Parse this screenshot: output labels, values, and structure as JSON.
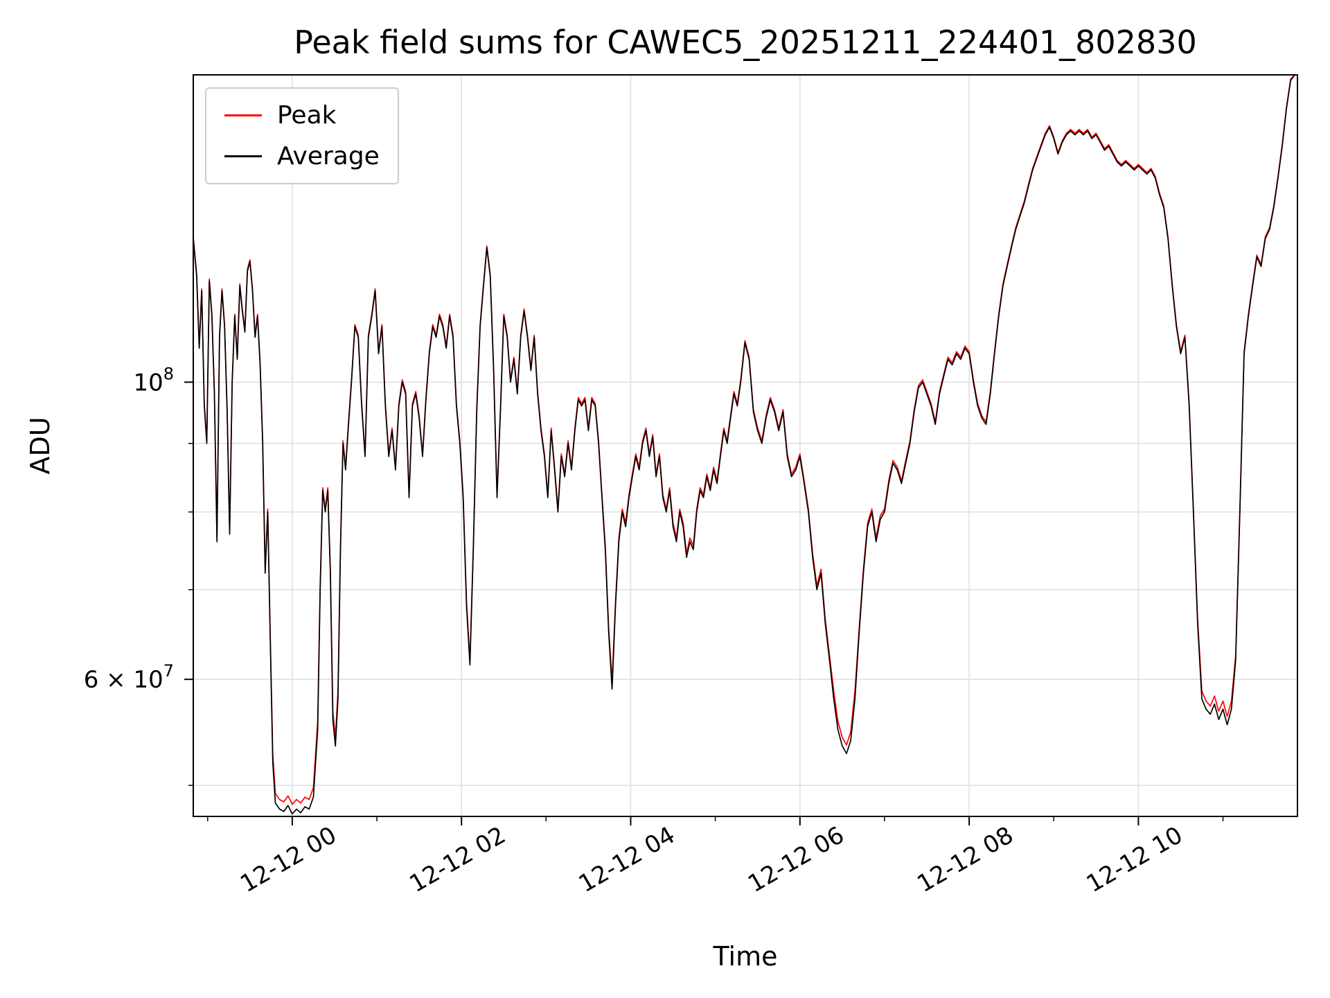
{
  "chart_data": {
    "type": "line",
    "title": "Peak field sums for CAWEC5_20251211_224401_802830",
    "xlabel": "Time",
    "ylabel": "ADU",
    "y_scale": "log",
    "value_unit": "ADU x 1e6",
    "x_unit": "hours relative to 2025-12-12 00:00",
    "xlim": [
      -1.17,
      11.88
    ],
    "ylim": [
      47.4,
      169.6
    ],
    "grid": {
      "color": "#e0e0e0",
      "y_values": [
        50,
        60,
        70,
        80,
        90,
        100
      ]
    },
    "xticks": {
      "major": [
        0,
        2,
        4,
        6,
        8,
        10
      ],
      "labels": [
        "12-12 00",
        "12-12 02",
        "12-12 04",
        "12-12 06",
        "12-12 08",
        "12-12 10"
      ],
      "minor": [
        -1,
        1,
        3,
        5,
        7,
        9,
        11
      ]
    },
    "yticks": {
      "labeled": [
        {
          "v": 100,
          "prefix": "",
          "base": "10",
          "exp": "8"
        },
        {
          "v": 60,
          "prefix": "6 × ",
          "base": "10",
          "exp": "7"
        }
      ],
      "minor": [
        50,
        70,
        80,
        90
      ]
    },
    "series": [
      {
        "name": "Peak",
        "color": "#ff0000",
        "col": 2,
        "width": 1.7
      },
      {
        "name": "Average",
        "color": "#000000",
        "col": 1,
        "width": 1.7
      }
    ],
    "columns": [
      "t_hours",
      "average",
      "peak"
    ],
    "points": [
      [
        -1.17,
        128,
        128.4
      ],
      [
        -1.13,
        120,
        120.4
      ],
      [
        -1.1,
        106,
        106.4
      ],
      [
        -1.07,
        117,
        117.4
      ],
      [
        -1.04,
        96,
        96.4
      ],
      [
        -1.01,
        90,
        90.4
      ],
      [
        -0.98,
        119,
        119.4
      ],
      [
        -0.95,
        112,
        112.4
      ],
      [
        -0.92,
        98,
        98.4
      ],
      [
        -0.89,
        76,
        76.5
      ],
      [
        -0.86,
        108,
        108.4
      ],
      [
        -0.83,
        117,
        117.4
      ],
      [
        -0.8,
        110,
        110.4
      ],
      [
        -0.77,
        95,
        95.4
      ],
      [
        -0.74,
        77,
        77.5
      ],
      [
        -0.71,
        100,
        100.4
      ],
      [
        -0.68,
        112,
        112.4
      ],
      [
        -0.65,
        104,
        104.4
      ],
      [
        -0.62,
        118,
        118.4
      ],
      [
        -0.59,
        113,
        113.4
      ],
      [
        -0.56,
        109,
        109.4
      ],
      [
        -0.53,
        121,
        121.4
      ],
      [
        -0.5,
        123,
        123.4
      ],
      [
        -0.47,
        117,
        117.4
      ],
      [
        -0.44,
        108,
        108.4
      ],
      [
        -0.41,
        112,
        112.4
      ],
      [
        -0.38,
        103,
        103.4
      ],
      [
        -0.35,
        90,
        90.4
      ],
      [
        -0.32,
        72,
        72.5
      ],
      [
        -0.29,
        80,
        80.4
      ],
      [
        -0.26,
        64,
        64.5
      ],
      [
        -0.23,
        52,
        52.8
      ],
      [
        -0.2,
        48.5,
        49.3
      ],
      [
        -0.15,
        48,
        48.8
      ],
      [
        -0.1,
        47.8,
        48.6
      ],
      [
        -0.05,
        48.3,
        49.1
      ],
      [
        0.0,
        47.6,
        48.4
      ],
      [
        0.05,
        48.0,
        48.8
      ],
      [
        0.1,
        47.7,
        48.5
      ],
      [
        0.15,
        48.2,
        49.0
      ],
      [
        0.2,
        48.0,
        48.8
      ],
      [
        0.25,
        49,
        49.8
      ],
      [
        0.3,
        55,
        55.8
      ],
      [
        0.33,
        70,
        70.5
      ],
      [
        0.36,
        83,
        83.4
      ],
      [
        0.39,
        80,
        80.4
      ],
      [
        0.42,
        83,
        83.4
      ],
      [
        0.45,
        72,
        72.5
      ],
      [
        0.48,
        56,
        56.8
      ],
      [
        0.51,
        53.5,
        54.3
      ],
      [
        0.54,
        58,
        58.8
      ],
      [
        0.57,
        75,
        75.5
      ],
      [
        0.6,
        90,
        90.4
      ],
      [
        0.63,
        86,
        86.4
      ],
      [
        0.66,
        92,
        92.4
      ],
      [
        0.7,
        100,
        100.4
      ],
      [
        0.74,
        110,
        110.4
      ],
      [
        0.78,
        108,
        108.4
      ],
      [
        0.82,
        96,
        96.4
      ],
      [
        0.86,
        88,
        88.4
      ],
      [
        0.9,
        108,
        108.4
      ],
      [
        0.94,
        112,
        112.4
      ],
      [
        0.98,
        117,
        117.4
      ],
      [
        1.02,
        105,
        105.4
      ],
      [
        1.06,
        110,
        110.4
      ],
      [
        1.1,
        96,
        96.4
      ],
      [
        1.14,
        88,
        88.4
      ],
      [
        1.18,
        92,
        92.4
      ],
      [
        1.22,
        86,
        86.4
      ],
      [
        1.26,
        96,
        96.4
      ],
      [
        1.3,
        100,
        100.4
      ],
      [
        1.34,
        98,
        98.4
      ],
      [
        1.38,
        82,
        82.4
      ],
      [
        1.42,
        96,
        96.4
      ],
      [
        1.46,
        98,
        98.4
      ],
      [
        1.5,
        94,
        94.4
      ],
      [
        1.54,
        88,
        88.4
      ],
      [
        1.58,
        97,
        97.4
      ],
      [
        1.62,
        105,
        105.4
      ],
      [
        1.66,
        110,
        110.4
      ],
      [
        1.7,
        108,
        108.4
      ],
      [
        1.74,
        112,
        112.4
      ],
      [
        1.78,
        110,
        110.4
      ],
      [
        1.82,
        106,
        106.4
      ],
      [
        1.86,
        112,
        112.4
      ],
      [
        1.9,
        108,
        108.4
      ],
      [
        1.94,
        96,
        96.4
      ],
      [
        1.98,
        90,
        90.4
      ],
      [
        2.02,
        82,
        82.4
      ],
      [
        2.06,
        68,
        68.5
      ],
      [
        2.1,
        61.5,
        62.0
      ],
      [
        2.14,
        75,
        75.5
      ],
      [
        2.18,
        95,
        95.4
      ],
      [
        2.22,
        110,
        110.4
      ],
      [
        2.26,
        118,
        118.4
      ],
      [
        2.3,
        126,
        126.4
      ],
      [
        2.34,
        120,
        120.4
      ],
      [
        2.38,
        102,
        102.4
      ],
      [
        2.42,
        82,
        82.4
      ],
      [
        2.46,
        95,
        95.4
      ],
      [
        2.5,
        112,
        112.4
      ],
      [
        2.54,
        108,
        108.4
      ],
      [
        2.58,
        100,
        100.4
      ],
      [
        2.62,
        104,
        104.4
      ],
      [
        2.66,
        98,
        98.4
      ],
      [
        2.7,
        108,
        108.4
      ],
      [
        2.74,
        113,
        113.4
      ],
      [
        2.78,
        108,
        108.4
      ],
      [
        2.82,
        102,
        102.4
      ],
      [
        2.86,
        108,
        108.4
      ],
      [
        2.9,
        98,
        98.4
      ],
      [
        2.94,
        92,
        92.4
      ],
      [
        2.98,
        88,
        88.4
      ],
      [
        3.02,
        82,
        82.4
      ],
      [
        3.06,
        92,
        92.4
      ],
      [
        3.1,
        86,
        86.4
      ],
      [
        3.14,
        80,
        80.4
      ],
      [
        3.18,
        88,
        88.4
      ],
      [
        3.22,
        85,
        85.4
      ],
      [
        3.26,
        90,
        90.4
      ],
      [
        3.3,
        86,
        86.4
      ],
      [
        3.34,
        92,
        92.4
      ],
      [
        3.38,
        97,
        97.4
      ],
      [
        3.42,
        96,
        96.4
      ],
      [
        3.46,
        97,
        97.4
      ],
      [
        3.5,
        92,
        92.4
      ],
      [
        3.54,
        97,
        97.4
      ],
      [
        3.58,
        96,
        96.4
      ],
      [
        3.62,
        90,
        90.4
      ],
      [
        3.66,
        82,
        82.4
      ],
      [
        3.7,
        75,
        75.5
      ],
      [
        3.74,
        65,
        65.5
      ],
      [
        3.78,
        59,
        59.8
      ],
      [
        3.82,
        68,
        68.5
      ],
      [
        3.86,
        76,
        76.5
      ],
      [
        3.9,
        80,
        80.4
      ],
      [
        3.94,
        78,
        78.5
      ],
      [
        3.98,
        82,
        82.4
      ],
      [
        4.02,
        85,
        85.4
      ],
      [
        4.06,
        88,
        88.4
      ],
      [
        4.1,
        86,
        86.4
      ],
      [
        4.14,
        90,
        90.4
      ],
      [
        4.18,
        92,
        92.4
      ],
      [
        4.22,
        88,
        88.4
      ],
      [
        4.26,
        91,
        91.4
      ],
      [
        4.3,
        85,
        85.4
      ],
      [
        4.34,
        88,
        88.4
      ],
      [
        4.38,
        82,
        82.4
      ],
      [
        4.42,
        80,
        80.4
      ],
      [
        4.46,
        83,
        83.4
      ],
      [
        4.5,
        78,
        78.5
      ],
      [
        4.54,
        76,
        76.5
      ],
      [
        4.58,
        80,
        80.4
      ],
      [
        4.62,
        78,
        78.5
      ],
      [
        4.66,
        74,
        74.5
      ],
      [
        4.7,
        76,
        76.5
      ],
      [
        4.74,
        75,
        75.5
      ],
      [
        4.78,
        80,
        80.4
      ],
      [
        4.82,
        83,
        83.4
      ],
      [
        4.86,
        82,
        82.4
      ],
      [
        4.9,
        85,
        85.4
      ],
      [
        4.94,
        83,
        83.4
      ],
      [
        4.98,
        86,
        86.4
      ],
      [
        5.02,
        84,
        84.4
      ],
      [
        5.06,
        88,
        88.4
      ],
      [
        5.1,
        92,
        92.4
      ],
      [
        5.14,
        90,
        90.4
      ],
      [
        5.18,
        94,
        94.4
      ],
      [
        5.22,
        98,
        98.4
      ],
      [
        5.26,
        96,
        96.4
      ],
      [
        5.3,
        100,
        100.4
      ],
      [
        5.35,
        107,
        107.4
      ],
      [
        5.4,
        104,
        104.4
      ],
      [
        5.45,
        95,
        95.4
      ],
      [
        5.5,
        92,
        92.4
      ],
      [
        5.55,
        90,
        90.4
      ],
      [
        5.6,
        94,
        94.4
      ],
      [
        5.65,
        97,
        97.4
      ],
      [
        5.7,
        95,
        95.4
      ],
      [
        5.75,
        92,
        92.4
      ],
      [
        5.8,
        95,
        95.4
      ],
      [
        5.85,
        88,
        88.4
      ],
      [
        5.9,
        85,
        85.4
      ],
      [
        5.95,
        86,
        86.4
      ],
      [
        6.0,
        88,
        88.4
      ],
      [
        6.05,
        84,
        84.4
      ],
      [
        6.1,
        80,
        80.4
      ],
      [
        6.15,
        74,
        74.5
      ],
      [
        6.2,
        70,
        70.5
      ],
      [
        6.25,
        72,
        72.5
      ],
      [
        6.3,
        66,
        66.5
      ],
      [
        6.35,
        62,
        62.5
      ],
      [
        6.4,
        58,
        58.8
      ],
      [
        6.45,
        55,
        55.8
      ],
      [
        6.5,
        53.5,
        54.3
      ],
      [
        6.55,
        52.8,
        53.6
      ],
      [
        6.6,
        54,
        54.8
      ],
      [
        6.65,
        58,
        58.8
      ],
      [
        6.7,
        65,
        65.5
      ],
      [
        6.75,
        72,
        72.5
      ],
      [
        6.8,
        78,
        78.5
      ],
      [
        6.85,
        80,
        80.4
      ],
      [
        6.9,
        76,
        76.5
      ],
      [
        6.95,
        79,
        79.5
      ],
      [
        7.0,
        80,
        80.4
      ],
      [
        7.05,
        84,
        84.4
      ],
      [
        7.1,
        87,
        87.4
      ],
      [
        7.15,
        86,
        86.4
      ],
      [
        7.2,
        84,
        84.4
      ],
      [
        7.25,
        87,
        87.4
      ],
      [
        7.3,
        90,
        90.4
      ],
      [
        7.35,
        95,
        95.4
      ],
      [
        7.4,
        99,
        99.4
      ],
      [
        7.45,
        100,
        100.4
      ],
      [
        7.5,
        98,
        98.4
      ],
      [
        7.55,
        96,
        96.4
      ],
      [
        7.6,
        93,
        93.4
      ],
      [
        7.65,
        98,
        98.4
      ],
      [
        7.7,
        101,
        101.4
      ],
      [
        7.75,
        104,
        104.4
      ],
      [
        7.8,
        103,
        103.4
      ],
      [
        7.85,
        105,
        105.4
      ],
      [
        7.9,
        104,
        104.4
      ],
      [
        7.95,
        106,
        106.4
      ],
      [
        8.0,
        105,
        105.4
      ],
      [
        8.05,
        100,
        100.4
      ],
      [
        8.1,
        96,
        96.4
      ],
      [
        8.15,
        94,
        94.4
      ],
      [
        8.2,
        93,
        93.4
      ],
      [
        8.25,
        98,
        98.4
      ],
      [
        8.3,
        105,
        105.4
      ],
      [
        8.35,
        112,
        112.4
      ],
      [
        8.4,
        118,
        118.4
      ],
      [
        8.45,
        122,
        122.4
      ],
      [
        8.5,
        126,
        126.4
      ],
      [
        8.55,
        130,
        130.4
      ],
      [
        8.6,
        133,
        133.4
      ],
      [
        8.65,
        136,
        136.4
      ],
      [
        8.7,
        140,
        140.4
      ],
      [
        8.75,
        144,
        144.4
      ],
      [
        8.8,
        147,
        147.4
      ],
      [
        8.85,
        150,
        150.4
      ],
      [
        8.9,
        153,
        153.4
      ],
      [
        8.95,
        155,
        155.4
      ],
      [
        9.0,
        152,
        152.4
      ],
      [
        9.05,
        148,
        148.4
      ],
      [
        9.1,
        151,
        151.4
      ],
      [
        9.15,
        153,
        153.4
      ],
      [
        9.2,
        154,
        154.4
      ],
      [
        9.25,
        153,
        153.4
      ],
      [
        9.3,
        154,
        154.4
      ],
      [
        9.35,
        153,
        153.4
      ],
      [
        9.4,
        154,
        154.4
      ],
      [
        9.45,
        152,
        152.4
      ],
      [
        9.5,
        153,
        153.4
      ],
      [
        9.55,
        151,
        151.4
      ],
      [
        9.6,
        149,
        149.4
      ],
      [
        9.65,
        150,
        150.4
      ],
      [
        9.7,
        148,
        148.4
      ],
      [
        9.75,
        146,
        146.4
      ],
      [
        9.8,
        145,
        145.4
      ],
      [
        9.85,
        146,
        146.4
      ],
      [
        9.9,
        145,
        145.4
      ],
      [
        9.95,
        144,
        144.4
      ],
      [
        10.0,
        145,
        145.4
      ],
      [
        10.05,
        144,
        144.4
      ],
      [
        10.1,
        143,
        143.4
      ],
      [
        10.15,
        144,
        144.4
      ],
      [
        10.2,
        142,
        142.4
      ],
      [
        10.25,
        138,
        138.4
      ],
      [
        10.3,
        135,
        135.4
      ],
      [
        10.35,
        128,
        128.4
      ],
      [
        10.4,
        118,
        118.4
      ],
      [
        10.45,
        110,
        110.4
      ],
      [
        10.5,
        105,
        105.4
      ],
      [
        10.55,
        108,
        108.4
      ],
      [
        10.6,
        96,
        96.4
      ],
      [
        10.65,
        80,
        80.4
      ],
      [
        10.7,
        66,
        66.5
      ],
      [
        10.75,
        58,
        58.8
      ],
      [
        10.8,
        57,
        57.8
      ],
      [
        10.85,
        56.5,
        57.3
      ],
      [
        10.9,
        57.5,
        58.3
      ],
      [
        10.95,
        56,
        56.8
      ],
      [
        11.0,
        57,
        57.8
      ],
      [
        11.05,
        55.5,
        56.3
      ],
      [
        11.1,
        57,
        57.8
      ],
      [
        11.15,
        62,
        62.5
      ],
      [
        11.2,
        80,
        80.4
      ],
      [
        11.25,
        105,
        105.4
      ],
      [
        11.3,
        112,
        112.4
      ],
      [
        11.35,
        118,
        118.4
      ],
      [
        11.4,
        124,
        124.4
      ],
      [
        11.45,
        122,
        122.4
      ],
      [
        11.5,
        128,
        128.4
      ],
      [
        11.55,
        130,
        130.4
      ],
      [
        11.6,
        135,
        135.4
      ],
      [
        11.65,
        142,
        142.4
      ],
      [
        11.7,
        150,
        150.4
      ],
      [
        11.75,
        160,
        160.4
      ],
      [
        11.8,
        168,
        168.4
      ],
      [
        11.85,
        172,
        172.4
      ],
      [
        11.88,
        170,
        170.4
      ]
    ],
    "legend_position": "upper left"
  }
}
